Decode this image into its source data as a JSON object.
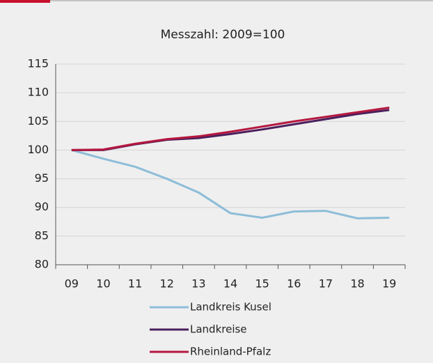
{
  "chart_data": {
    "type": "line",
    "title": "Messzahl: 2009=100",
    "categories": [
      "09",
      "10",
      "11",
      "12",
      "13",
      "14",
      "15",
      "16",
      "17",
      "18",
      "19"
    ],
    "series": [
      {
        "name": "Landkreis Kusel",
        "color": "#8dbdd8",
        "values": [
          100,
          98.5,
          97.1,
          95,
          92.6,
          89,
          88.2,
          89.3,
          89.4,
          88.1,
          88.2
        ]
      },
      {
        "name": "Landkreise",
        "color": "#4a1f5c",
        "values": [
          100,
          100,
          101,
          101.8,
          102.1,
          102.8,
          103.6,
          104.5,
          105.4,
          106.3,
          107.0
        ]
      },
      {
        "name": "Rheinland-Pfalz",
        "color": "#b5173f",
        "values": [
          100,
          100.1,
          101.1,
          101.9,
          102.4,
          103.2,
          104.1,
          105.0,
          105.8,
          106.6,
          107.4
        ]
      }
    ],
    "ylim": [
      80,
      115
    ],
    "yticks": [
      80,
      85,
      90,
      95,
      100,
      105,
      110,
      115
    ],
    "grid": true
  }
}
